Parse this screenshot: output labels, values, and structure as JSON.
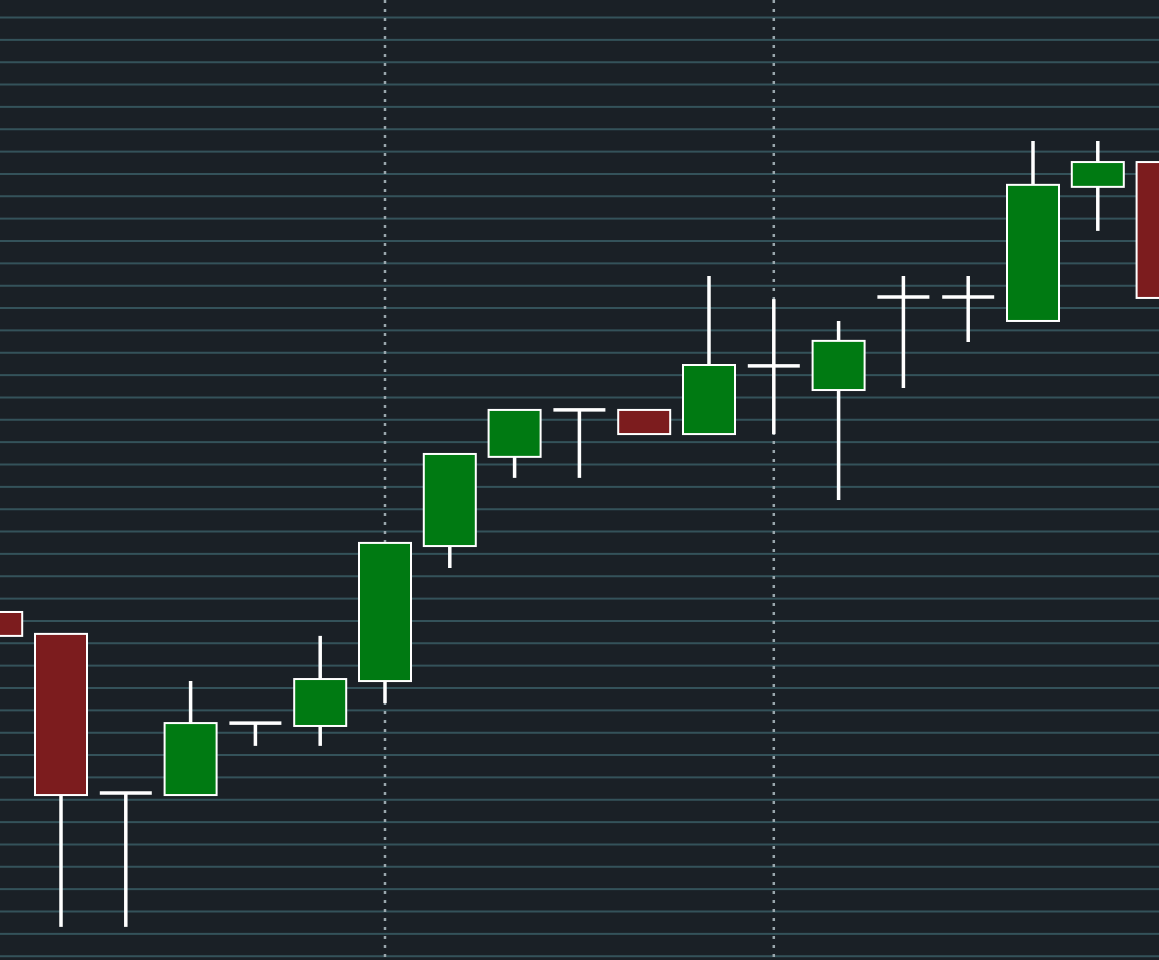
{
  "chart_data": {
    "type": "candlestick",
    "title": "",
    "xlabel": "",
    "ylabel": "",
    "ylim": [
      0,
      42.95
    ],
    "grid": true,
    "vertical_markers": [
      6,
      12
    ],
    "colors": {
      "background": "#1a2026",
      "grid": "#34525a",
      "up": "#007a12",
      "down": "#7c1c1e",
      "wick": "#ffffff",
      "marker": "#9aa7ad"
    },
    "candles": [
      {
        "open": 15.57,
        "high": 15.57,
        "low": 14.5,
        "close": 14.5
      },
      {
        "open": 14.59,
        "high": 14.59,
        "low": 1.48,
        "close": 7.38
      },
      {
        "open": 7.47,
        "high": 7.47,
        "low": 1.48,
        "close": 7.47
      },
      {
        "open": 7.38,
        "high": 12.48,
        "low": 7.38,
        "close": 10.6
      },
      {
        "open": 10.6,
        "high": 10.6,
        "low": 9.58,
        "close": 10.6
      },
      {
        "open": 10.47,
        "high": 14.5,
        "low": 9.58,
        "close": 12.57
      },
      {
        "open": 12.48,
        "high": 18.66,
        "low": 11.5,
        "close": 18.66
      },
      {
        "open": 18.52,
        "high": 22.64,
        "low": 17.54,
        "close": 22.64
      },
      {
        "open": 22.51,
        "high": 24.61,
        "low": 21.57,
        "close": 24.61
      },
      {
        "open": 24.61,
        "high": 24.61,
        "low": 21.57,
        "close": 24.61
      },
      {
        "open": 24.61,
        "high": 24.61,
        "low": 23.53,
        "close": 23.53
      },
      {
        "open": 23.53,
        "high": 30.6,
        "low": 23.53,
        "close": 26.62
      },
      {
        "open": 26.58,
        "high": 29.57,
        "low": 23.53,
        "close": 26.58
      },
      {
        "open": 25.5,
        "high": 28.59,
        "low": 20.58,
        "close": 27.7
      },
      {
        "open": 29.66,
        "high": 30.6,
        "low": 25.59,
        "close": 29.66
      },
      {
        "open": 29.66,
        "high": 30.6,
        "low": 27.65,
        "close": 29.66
      },
      {
        "open": 28.59,
        "high": 36.64,
        "low": 28.59,
        "close": 34.68
      },
      {
        "open": 34.59,
        "high": 36.64,
        "low": 32.62,
        "close": 35.7
      },
      {
        "open": 35.7,
        "high": 35.7,
        "low": 29.62,
        "close": 29.62
      }
    ]
  }
}
